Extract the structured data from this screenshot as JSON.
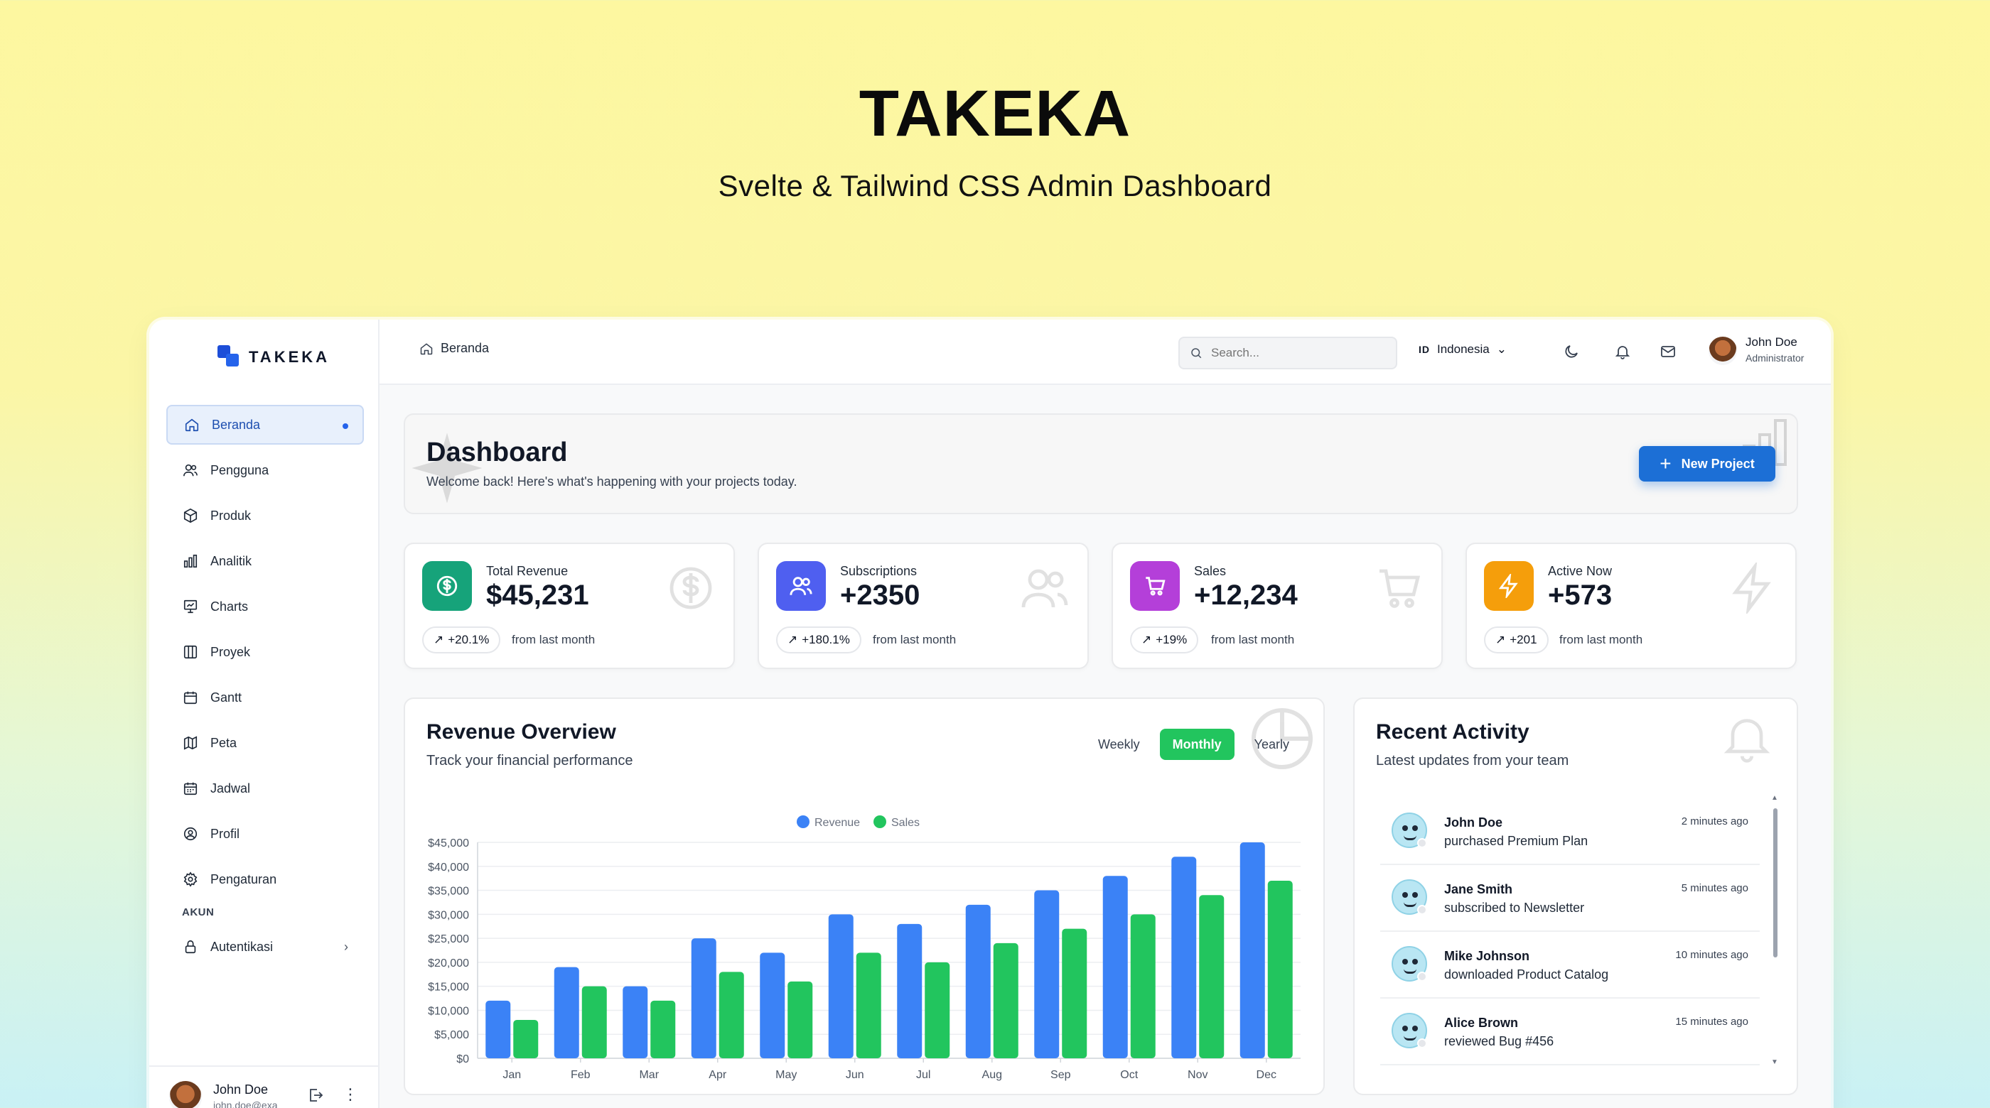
{
  "hero": {
    "title": "TAKEKA",
    "subtitle": "Svelte & Tailwind CSS Admin Dashboard"
  },
  "brand": {
    "name": "TAKEKA"
  },
  "sidebar": {
    "items": [
      {
        "label": "Beranda",
        "icon": "home-icon",
        "active": true
      },
      {
        "label": "Pengguna",
        "icon": "users-icon"
      },
      {
        "label": "Produk",
        "icon": "box-icon"
      },
      {
        "label": "Analitik",
        "icon": "bar-chart-icon"
      },
      {
        "label": "Charts",
        "icon": "presentation-chart-icon"
      },
      {
        "label": "Proyek",
        "icon": "kanban-icon"
      },
      {
        "label": "Gantt",
        "icon": "calendar-icon"
      },
      {
        "label": "Peta",
        "icon": "map-icon"
      },
      {
        "label": "Jadwal",
        "icon": "calendar-days-icon"
      },
      {
        "label": "Profil",
        "icon": "user-circle-icon"
      },
      {
        "label": "Pengaturan",
        "icon": "gear-icon"
      }
    ],
    "section_label": "AKUN",
    "auth_item": {
      "label": "Autentikasi",
      "icon": "lock-icon"
    },
    "user": {
      "name": "John Doe",
      "email": "john.doe@exa"
    }
  },
  "header": {
    "breadcrumb": "Beranda",
    "search_placeholder": "Search...",
    "language": {
      "code": "ID",
      "label": "Indonesia"
    },
    "user": {
      "name": "John Doe",
      "role": "Administrator"
    }
  },
  "banner": {
    "title": "Dashboard",
    "subtitle": "Welcome back! Here's what's happening with your projects today.",
    "button": "New Project"
  },
  "stats": [
    {
      "label": "Total Revenue",
      "value": "$45,231",
      "change": "+20.1%",
      "note": "from last month",
      "color": "#16a37a",
      "icon": "dollar-icon"
    },
    {
      "label": "Subscriptions",
      "value": "+2350",
      "change": "+180.1%",
      "note": "from last month",
      "color": "#4f5ff0",
      "icon": "users-icon"
    },
    {
      "label": "Sales",
      "value": "+12,234",
      "change": "+19%",
      "note": "from last month",
      "color": "#b43fd9",
      "icon": "cart-icon"
    },
    {
      "label": "Active Now",
      "value": "+573",
      "change": "+201",
      "note": "from last month",
      "color": "#f59e0b",
      "icon": "bolt-icon"
    }
  ],
  "revenue": {
    "title": "Revenue Overview",
    "subtitle": "Track your financial performance",
    "tabs": [
      "Weekly",
      "Monthly",
      "Yearly"
    ],
    "active_tab": "Monthly"
  },
  "chart_data": {
    "type": "bar",
    "categories": [
      "Jan",
      "Feb",
      "Mar",
      "Apr",
      "May",
      "Jun",
      "Jul",
      "Aug",
      "Sep",
      "Oct",
      "Nov",
      "Dec"
    ],
    "series": [
      {
        "name": "Revenue",
        "color": "#3b82f6",
        "values": [
          12000,
          19000,
          15000,
          25000,
          22000,
          30000,
          28000,
          32000,
          35000,
          38000,
          42000,
          45000
        ]
      },
      {
        "name": "Sales",
        "color": "#22c55e",
        "values": [
          8000,
          15000,
          12000,
          18000,
          16000,
          22000,
          20000,
          24000,
          27000,
          30000,
          34000,
          37000
        ]
      }
    ],
    "y_ticks": [
      "$0",
      "$5,000",
      "$10,000",
      "$15,000",
      "$20,000",
      "$25,000",
      "$30,000",
      "$35,000",
      "$40,000",
      "$45,000"
    ],
    "ylim": [
      0,
      45000
    ],
    "legend_position": "top-center",
    "grid": true
  },
  "activity": {
    "title": "Recent Activity",
    "subtitle": "Latest updates from your team",
    "items": [
      {
        "name": "John Doe",
        "action": "purchased Premium Plan",
        "time": "2 minutes ago"
      },
      {
        "name": "Jane Smith",
        "action": "subscribed to Newsletter",
        "time": "5 minutes ago"
      },
      {
        "name": "Mike Johnson",
        "action": "downloaded Product Catalog",
        "time": "10 minutes ago"
      },
      {
        "name": "Alice Brown",
        "action": "reviewed Bug #456",
        "time": "15 minutes ago"
      }
    ]
  }
}
